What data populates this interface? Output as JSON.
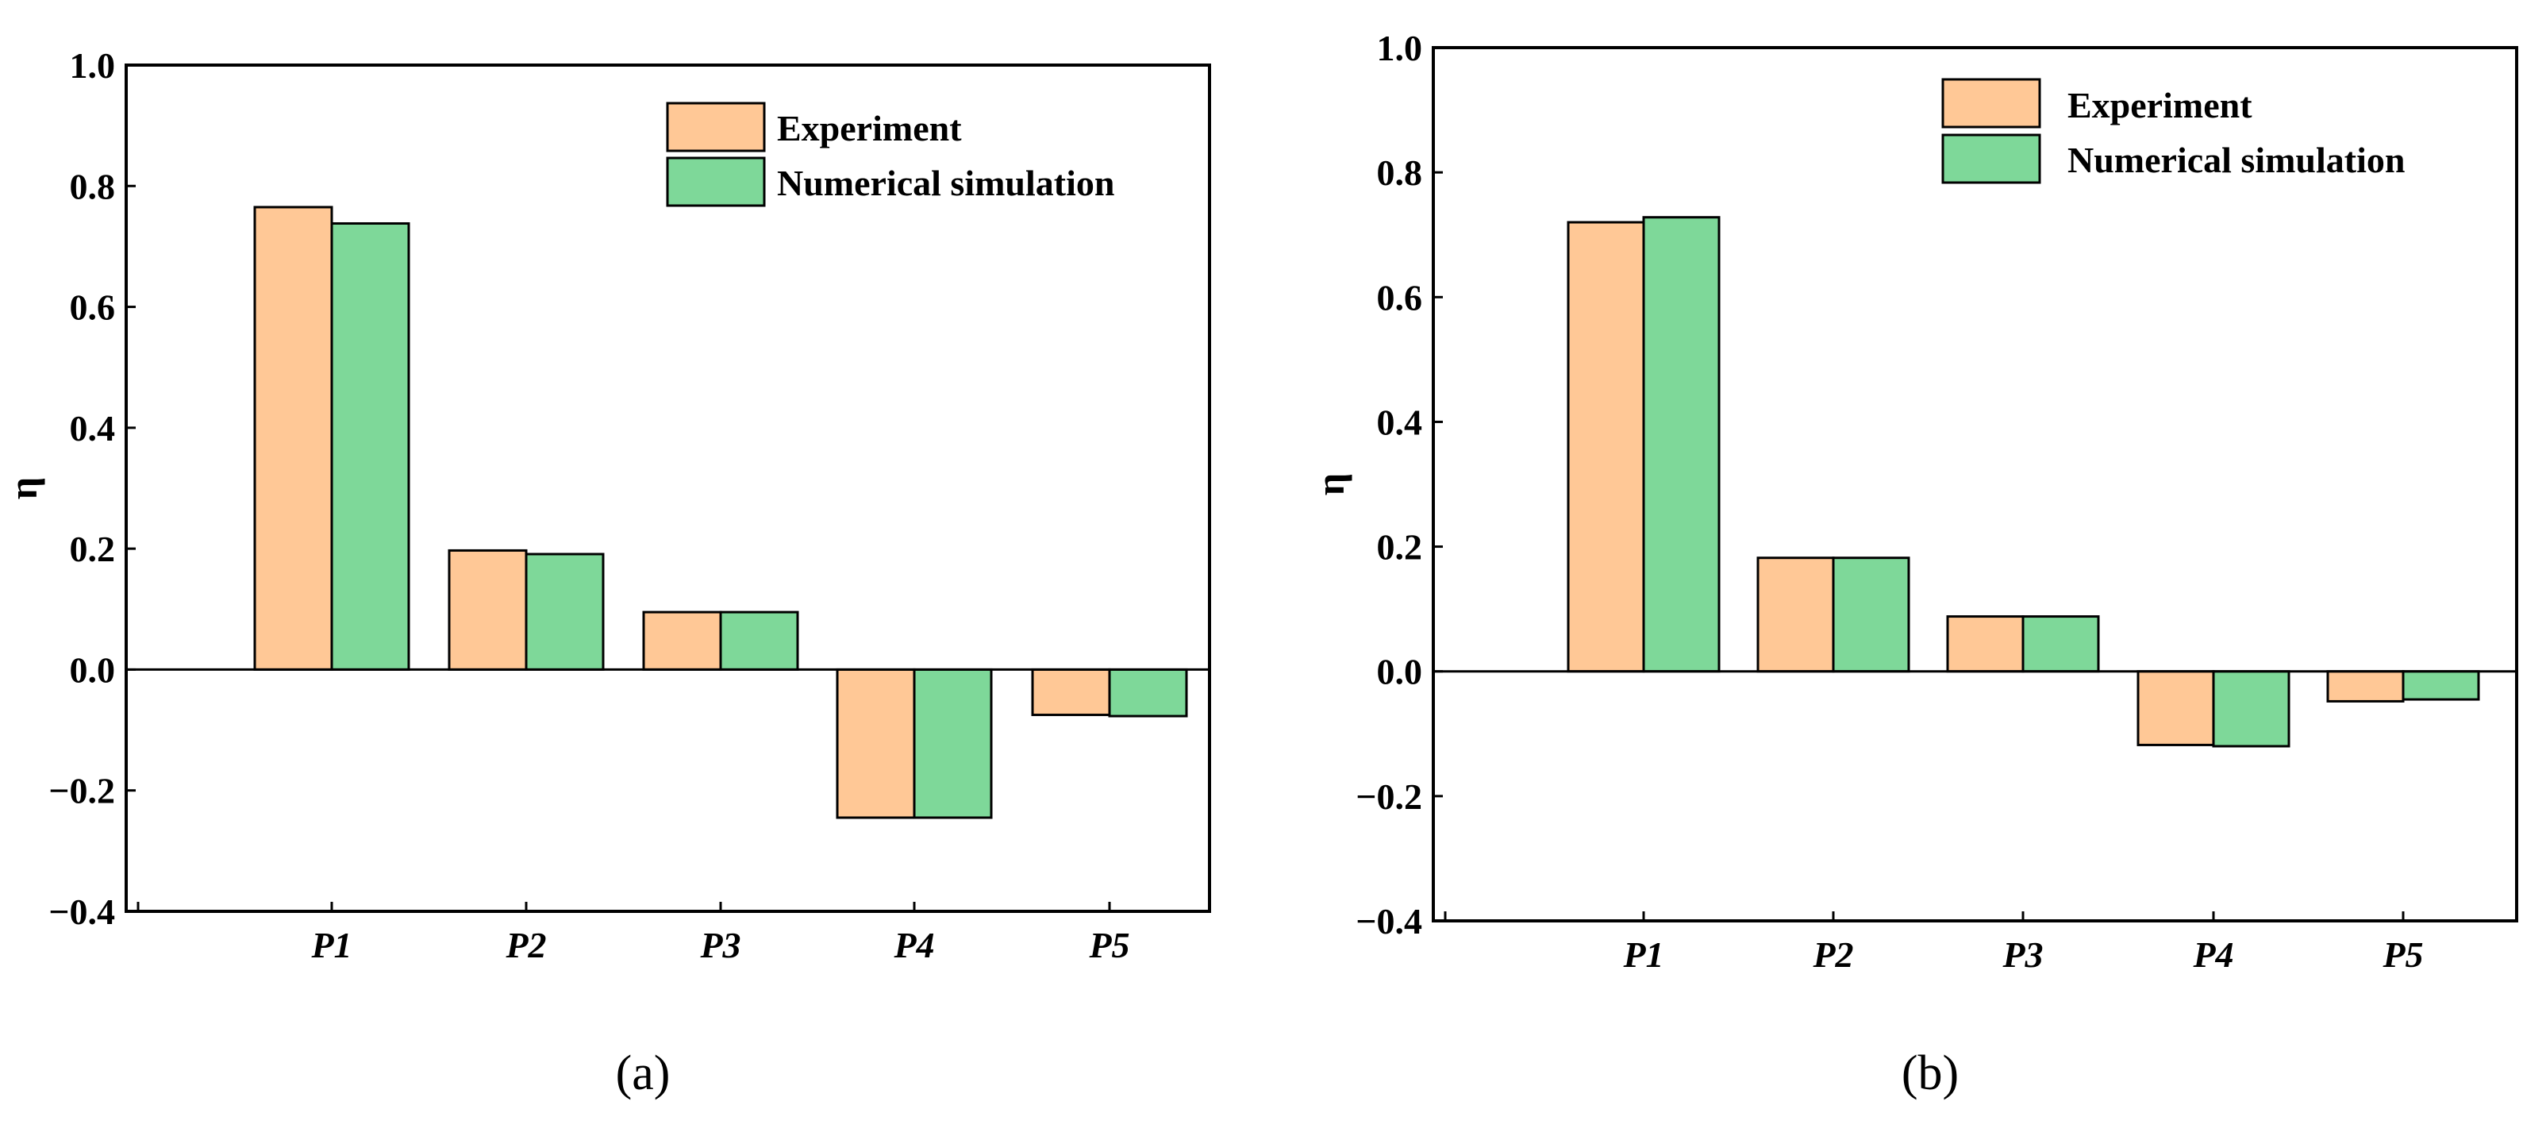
{
  "chart_data": [
    {
      "type": "bar",
      "panel_label": "(a)",
      "categories": [
        "P1",
        "P2",
        "P3",
        "P4",
        "P5"
      ],
      "series": [
        {
          "name": "Experiment",
          "color": "#FFC896",
          "values": [
            0.765,
            0.197,
            0.095,
            -0.245,
            -0.075
          ]
        },
        {
          "name": "Numerical simulation",
          "color": "#7ED899",
          "values": [
            0.738,
            0.191,
            0.095,
            -0.245,
            -0.077
          ]
        }
      ],
      "ylabel": "η",
      "xlabel": "",
      "ylim": [
        -0.4,
        1.0
      ],
      "yticks": [
        "1.0",
        "0.8",
        "0.6",
        "0.4",
        "0.2",
        "0.0",
        "-0.2",
        "-0.4"
      ],
      "legend_position": "top-right"
    },
    {
      "type": "bar",
      "panel_label": "(b)",
      "categories": [
        "P1",
        "P2",
        "P3",
        "P4",
        "P5"
      ],
      "series": [
        {
          "name": "Experiment",
          "color": "#FFC896",
          "values": [
            0.72,
            0.182,
            0.088,
            -0.118,
            -0.048
          ]
        },
        {
          "name": "Numerical simulation",
          "color": "#7ED899",
          "values": [
            0.728,
            0.182,
            0.088,
            -0.12,
            -0.045
          ]
        }
      ],
      "ylabel": "η",
      "xlabel": "",
      "ylim": [
        -0.4,
        1.0
      ],
      "yticks": [
        "1.0",
        "0.8",
        "0.6",
        "0.4",
        "0.2",
        "0.0",
        "-0.2",
        "-0.4"
      ],
      "legend_position": "top-right"
    }
  ]
}
